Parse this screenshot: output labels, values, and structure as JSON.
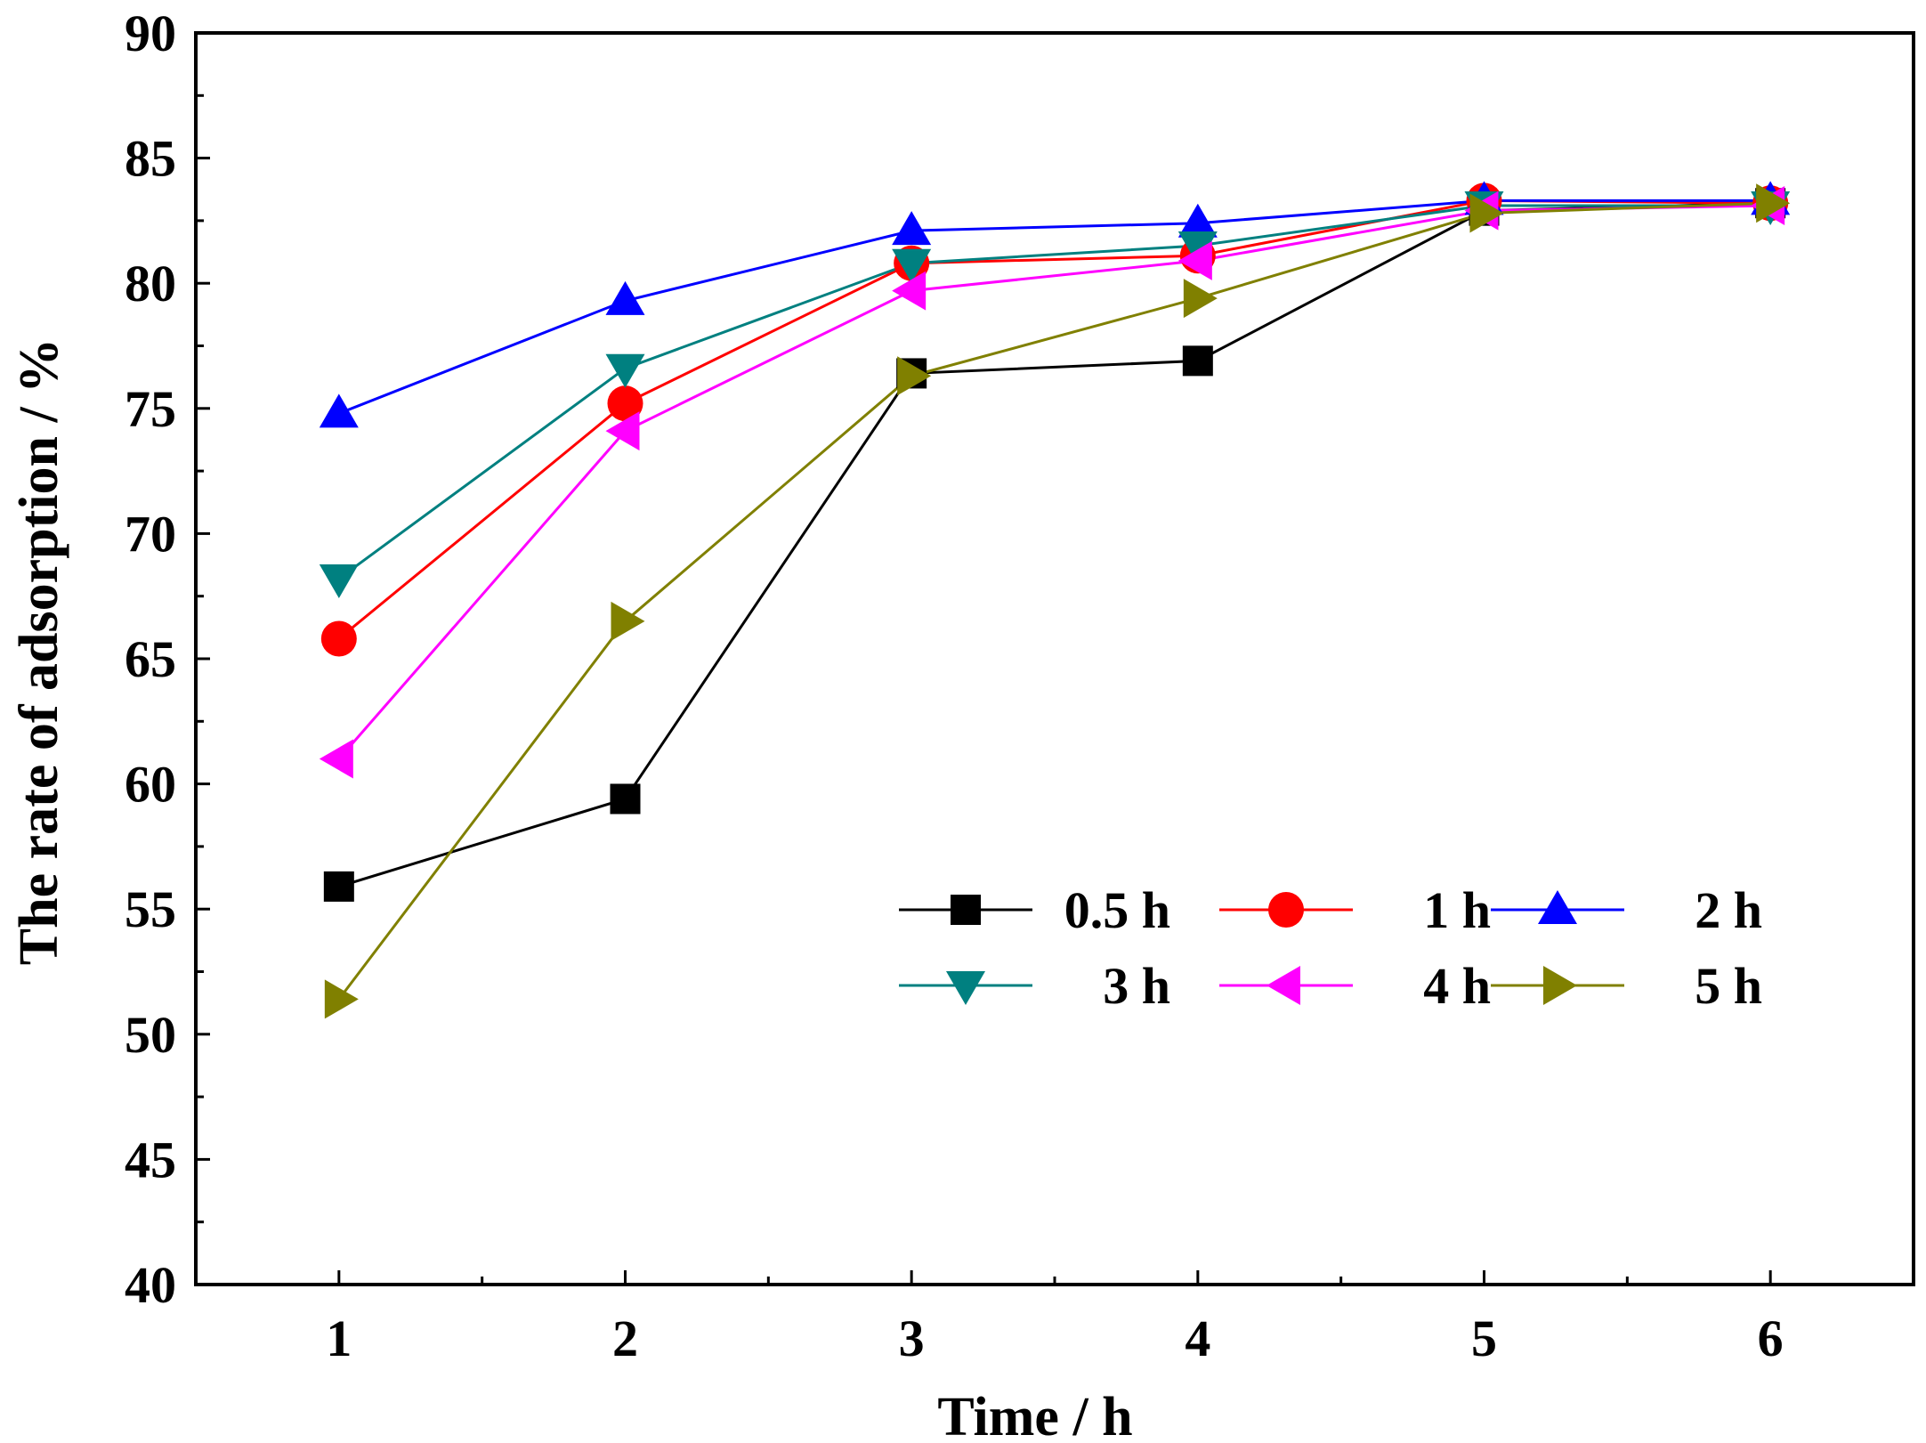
{
  "chart_data": {
    "type": "line",
    "title": "",
    "xlabel": "Time / h",
    "ylabel": "The  rate of adsorption / %",
    "x": [
      1,
      2,
      3,
      4,
      5,
      6
    ],
    "xlim": [
      0.5,
      6.5
    ],
    "ylim": [
      40,
      90
    ],
    "xticks": [
      "1",
      "2",
      "3",
      "4",
      "5",
      "6"
    ],
    "yticks": [
      "40",
      "45",
      "50",
      "55",
      "60",
      "65",
      "70",
      "75",
      "80",
      "85",
      "90"
    ],
    "grid": false,
    "legend_position": "lower-right",
    "series": [
      {
        "name": "0.5 h",
        "color": "#000000",
        "marker": "square",
        "values": [
          55.9,
          59.4,
          76.4,
          76.9,
          82.9,
          83.2
        ]
      },
      {
        "name": "1 h",
        "color": "#ff0000",
        "marker": "circle",
        "values": [
          65.8,
          75.2,
          80.8,
          81.1,
          83.3,
          83.2
        ]
      },
      {
        "name": "2 h",
        "color": "#0000ff",
        "marker": "triangle-up",
        "values": [
          74.8,
          79.3,
          82.1,
          82.4,
          83.3,
          83.3
        ]
      },
      {
        "name": "3 h",
        "color": "#008080",
        "marker": "triangle-down",
        "values": [
          68.2,
          76.6,
          80.8,
          81.5,
          83.1,
          83.1
        ]
      },
      {
        "name": "4 h",
        "color": "#ff00ff",
        "marker": "triangle-left",
        "values": [
          61.0,
          74.1,
          79.7,
          80.9,
          82.9,
          83.1
        ]
      },
      {
        "name": "5 h",
        "color": "#808000",
        "marker": "triangle-right",
        "values": [
          51.4,
          66.5,
          76.3,
          79.4,
          82.8,
          83.2
        ]
      }
    ]
  }
}
